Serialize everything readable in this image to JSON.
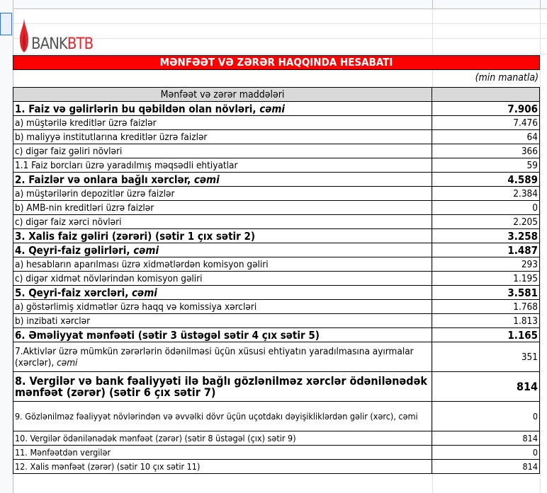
{
  "logo": {
    "part1": "BANK",
    "part2": "BTB",
    "brand_color": "#e3262e"
  },
  "title": "MƏNFƏƏT VƏ ZƏRƏR HAQQINDA HESABATI",
  "unit": "(min manatla)",
  "header": {
    "item": "Mənfəət və zərər maddələri",
    "value": ""
  },
  "rows": [
    {
      "label": "1. Faiz və gəlirlərin bu qəbildən olan növləri, ",
      "suffix": "cəmi",
      "value": "7.906",
      "bold": true
    },
    {
      "label": "a) müştərilə kreditlər üzrə faizlər",
      "value": "7.476"
    },
    {
      "label": "b) maliyyə institutlarına kreditlər üzrə faizlər",
      "value": "64"
    },
    {
      "label": "c) digər faiz gəliri növləri",
      "value": "366"
    },
    {
      "label": "1.1 Faiz borcları üzrə yaradılmış məqsədli ehtiyatlar",
      "value": "59"
    },
    {
      "label": "2. Faizlər və onlara bağlı xərclər, ",
      "suffix": "cəmi",
      "value": "4.589",
      "bold": true
    },
    {
      "label": "a) müştərilərin depozitlər üzrə faizlər",
      "value": "2.384"
    },
    {
      "label": "b) AMB-nin kreditləri üzrə faizlər",
      "value": "0"
    },
    {
      "label": "c) digər faiz xərci növləri",
      "value": "2.205"
    },
    {
      "label": "3. Xalis faiz gəliri (zərəri) (sətir 1 çıx sətir 2)",
      "value": "3.258",
      "bold": true
    },
    {
      "label": "4. Qeyri-faiz gəlirləri, ",
      "suffix": "cəmi",
      "value": "1.487",
      "bold": true
    },
    {
      "label": "a) hesabların aparılması üzrə xidmətlərdən komisyon gəliri",
      "value": "293"
    },
    {
      "label": "c) digər xidmət növlərindən komisyon gəliri",
      "value": "1.195"
    },
    {
      "label": "5. Qeyri-faiz xərcləri, ",
      "suffix": "cəmi",
      "value": "3.581",
      "bold": true
    },
    {
      "label": "a) göstərlimiş xidmətlər üzrə haqq və komissiya xərcləri",
      "value": "1.768"
    },
    {
      "label": "b) inzibati xərclər",
      "value": "1.813"
    },
    {
      "label": "6. Əməliyyat mənfəəti (sətir 3 üstəgəl sətir 4 çıx sətir 5)",
      "value": "1.165",
      "bold": true
    },
    {
      "label": "7.Aktivlər üzrə mümkün zərərlərin ödənilməsi üçün xüsusi ehtiyatın yaradılmasına ayırmalar (xərclər), ",
      "suffix": "cəmi",
      "value": "351",
      "tall": true
    },
    {
      "label": "8. Vergilər və bank fəaliyyəti ilə bağlı gözlənilməz xərclər ödənilənədək mənfəət (zərər) (sətir 6 çıx sətir 7)",
      "value": "814",
      "bold": true,
      "tall": true,
      "big": true
    },
    {
      "label": "9. Gözlənilməz fəaliyyət növlərindən və əvvəlki dövr üçün uçotdakı dəyişikliklərdən gəlir (xərc), cəmi",
      "value": "0",
      "tall": true,
      "sm": true
    },
    {
      "label": "10. Vergilər ödənilənədək mənfəət (zərər) (sətir 8 üstəgəl (çıx) sətir 9)",
      "value": "814",
      "sm": true
    },
    {
      "label": "11. Mənfəətdən vergilər",
      "value": "0",
      "sm": true
    },
    {
      "label": "12. Xalis mənfəət (zərər) (sətir 10 çıx sətir 11)",
      "value": "814",
      "sm": true
    }
  ]
}
